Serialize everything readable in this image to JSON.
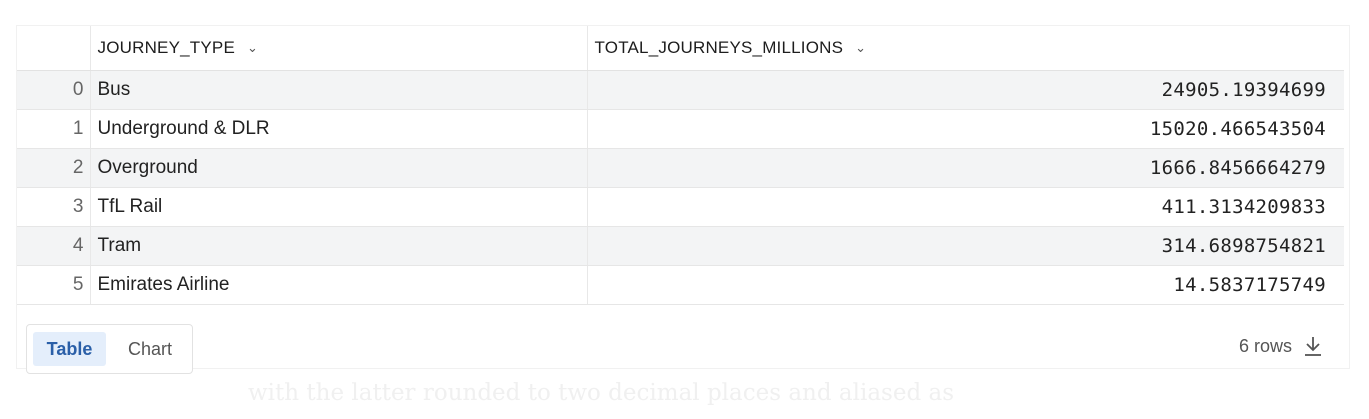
{
  "table": {
    "columns": [
      {
        "label": "JOURNEY_TYPE",
        "icon": "chevron-down-icon"
      },
      {
        "label": "TOTAL_JOURNEYS_MILLIONS",
        "icon": "chevron-down-icon"
      }
    ],
    "rows": [
      {
        "index": "0",
        "journey_type": "Bus",
        "total": "24905.19394699"
      },
      {
        "index": "1",
        "journey_type": "Underground & DLR",
        "total": "15020.466543504"
      },
      {
        "index": "2",
        "journey_type": "Overground",
        "total": "1666.8456664279"
      },
      {
        "index": "3",
        "journey_type": "TfL Rail",
        "total": "411.3134209833"
      },
      {
        "index": "4",
        "journey_type": "Tram",
        "total": "314.6898754821"
      },
      {
        "index": "5",
        "journey_type": "Emirates Airline",
        "total": "14.5837175749"
      }
    ]
  },
  "toolbar": {
    "table_label": "Table",
    "chart_label": "Chart",
    "active_view": "Table",
    "rows_label": "6 rows",
    "download_icon": "download-icon"
  },
  "caption": "with the latter rounded to two decimal places and aliased as",
  "colors": {
    "active_toggle_bg": "#e4eefb",
    "active_toggle_text": "#2a5fa8",
    "striped_row": "#f3f4f5"
  }
}
